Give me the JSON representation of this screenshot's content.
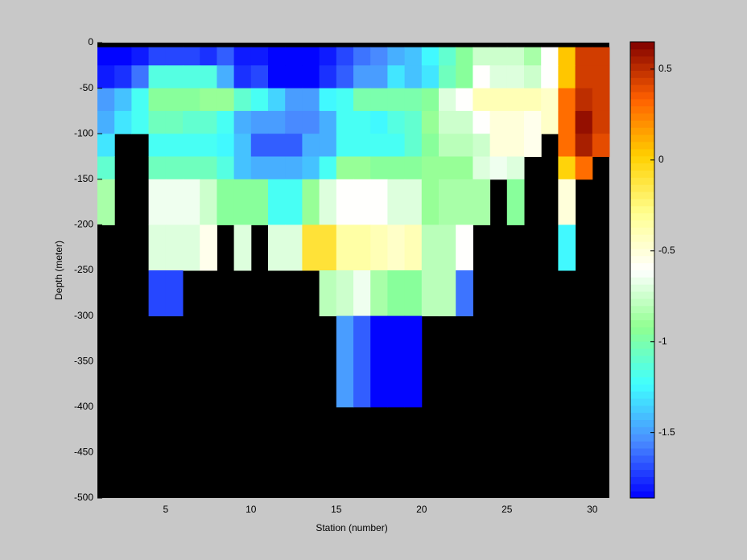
{
  "chart_data": {
    "type": "heatmap",
    "xlabel": "Station (number)",
    "ylabel": "Depth (meter)",
    "x_edges": [
      1,
      2,
      3,
      4,
      5,
      6,
      7,
      8,
      9,
      10,
      11,
      12,
      13,
      14,
      15,
      16,
      17,
      18,
      19,
      20,
      21,
      22,
      23,
      24,
      25,
      26,
      27,
      28,
      29,
      30,
      31
    ],
    "y_edges": [
      0,
      -5,
      -25,
      -50,
      -75,
      -100,
      -125,
      -150,
      -200,
      -250,
      -300,
      -400,
      -500
    ],
    "values": [
      [
        null,
        null,
        null,
        null,
        null,
        null,
        null,
        null,
        null,
        null,
        null,
        null,
        null,
        null,
        null,
        null,
        null,
        null,
        null,
        null,
        null,
        null,
        null,
        null,
        null,
        null,
        null,
        null,
        null,
        null
      ],
      [
        -1.85,
        -1.85,
        -1.8,
        -1.7,
        -1.7,
        -1.7,
        -1.75,
        -1.65,
        -1.8,
        -1.8,
        -1.85,
        -1.85,
        -1.85,
        -1.8,
        -1.7,
        -1.6,
        -1.55,
        -1.45,
        -1.4,
        -1.25,
        -1.1,
        -0.95,
        -0.75,
        -0.75,
        -0.75,
        -0.85,
        -0.6,
        0.05,
        0.45,
        0.45
      ],
      [
        -1.8,
        -1.75,
        -1.6,
        -1.15,
        -1.15,
        -1.15,
        -1.15,
        -1.45,
        -1.75,
        -1.7,
        -1.85,
        -1.85,
        -1.85,
        -1.75,
        -1.65,
        -1.5,
        -1.5,
        -1.3,
        -1.4,
        -1.3,
        -1.05,
        -0.95,
        -0.6,
        -0.7,
        -0.7,
        -0.75,
        -0.6,
        0.05,
        0.45,
        0.45
      ],
      [
        -1.5,
        -1.4,
        -1.2,
        -0.95,
        -0.95,
        -0.95,
        -0.9,
        -0.9,
        -1.1,
        -1.2,
        -1.35,
        -1.5,
        -1.5,
        -1.25,
        -1.2,
        -1.0,
        -1.0,
        -1.0,
        -1.0,
        -0.95,
        -0.7,
        -0.6,
        -0.4,
        -0.4,
        -0.4,
        -0.4,
        -0.45,
        0.3,
        0.5,
        0.45
      ],
      [
        -1.45,
        -1.3,
        -1.2,
        -1.05,
        -1.05,
        -1.1,
        -1.1,
        -1.2,
        -1.45,
        -1.5,
        -1.5,
        -1.55,
        -1.55,
        -1.45,
        -1.2,
        -1.2,
        -1.25,
        -1.15,
        -1.1,
        -0.9,
        -0.75,
        -0.75,
        -0.6,
        -0.5,
        -0.5,
        -0.55,
        -0.45,
        0.3,
        0.6,
        0.45
      ],
      [
        -1.3,
        null,
        null,
        -1.2,
        -1.2,
        -1.2,
        -1.2,
        -1.25,
        -1.4,
        -1.65,
        -1.65,
        -1.65,
        -1.45,
        -1.45,
        -1.2,
        -1.2,
        -1.2,
        -1.2,
        -1.1,
        -0.95,
        -0.8,
        -0.8,
        -0.75,
        -0.5,
        -0.5,
        -0.55,
        null,
        0.3,
        0.55,
        0.4
      ],
      [
        -1.1,
        null,
        null,
        -1.05,
        -1.05,
        -1.05,
        -1.05,
        -1.15,
        -1.4,
        -1.45,
        -1.45,
        -1.45,
        -1.4,
        -1.2,
        -0.9,
        -0.9,
        -0.95,
        -0.95,
        -0.95,
        -0.9,
        -0.9,
        -0.9,
        -0.7,
        -0.65,
        -0.7,
        null,
        null,
        0.0,
        0.3,
        null
      ],
      [
        -0.85,
        null,
        null,
        -0.65,
        -0.65,
        -0.65,
        -0.75,
        -0.95,
        -0.95,
        -0.95,
        -1.2,
        -1.2,
        -0.9,
        -0.7,
        -0.6,
        -0.6,
        -0.6,
        -0.7,
        -0.7,
        -0.9,
        -0.85,
        -0.85,
        -0.85,
        null,
        -0.95,
        null,
        null,
        -0.5,
        null,
        null
      ],
      [
        null,
        null,
        null,
        -0.7,
        -0.7,
        -0.7,
        -0.55,
        null,
        -0.7,
        null,
        -0.7,
        -0.7,
        -0.1,
        -0.1,
        -0.35,
        -0.35,
        -0.4,
        -0.45,
        -0.4,
        -0.8,
        -0.8,
        -0.6,
        null,
        null,
        null,
        null,
        null,
        -1.25,
        null,
        null
      ],
      [
        null,
        null,
        null,
        -1.7,
        -1.7,
        null,
        null,
        null,
        null,
        null,
        null,
        null,
        null,
        -0.8,
        -0.75,
        -0.65,
        -0.85,
        -0.95,
        -0.95,
        -0.8,
        -0.8,
        -1.6,
        null,
        null,
        null,
        null,
        null,
        null,
        null,
        null
      ],
      [
        null,
        null,
        null,
        null,
        null,
        null,
        null,
        null,
        null,
        null,
        null,
        null,
        null,
        null,
        -1.5,
        -1.65,
        -1.85,
        -1.85,
        -1.85,
        null,
        null,
        null,
        null,
        null,
        null,
        null,
        null,
        null,
        null,
        null
      ],
      [
        null,
        null,
        null,
        null,
        null,
        null,
        null,
        null,
        null,
        null,
        null,
        null,
        null,
        null,
        null,
        null,
        null,
        null,
        null,
        null,
        null,
        null,
        null,
        null,
        null,
        null,
        null,
        null,
        null,
        null
      ]
    ],
    "xlim": [
      1,
      31
    ],
    "ylim": [
      -500,
      0
    ],
    "xticks": [
      5,
      10,
      15,
      20,
      25,
      30
    ],
    "yticks": [
      0,
      -50,
      -100,
      -150,
      -200,
      -250,
      -300,
      -350,
      -400,
      -450,
      -500
    ],
    "clim": [
      -1.86,
      0.65
    ],
    "cticks": [
      0.5,
      0,
      -0.5,
      -1,
      -1.5
    ],
    "colormap": [
      "#0000ff",
      "#4a8cff",
      "#40ffff",
      "#90ff90",
      "#ffffff",
      "#ffff90",
      "#ffd000",
      "#ff6000",
      "#800000"
    ],
    "nan_color": "#000000"
  }
}
